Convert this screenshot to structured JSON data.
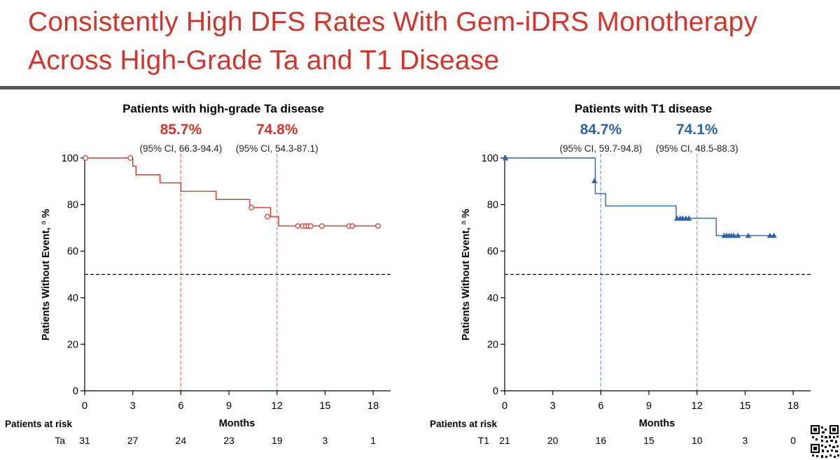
{
  "slide": {
    "title_line1": "Consistently High DFS Rates With Gem-iDRS Monotherapy",
    "title_line2": "Across High-Grade Ta and T1 Disease",
    "colors": {
      "title": "#d2342c",
      "rule": "#555555"
    }
  },
  "chart_data": [
    {
      "type": "line",
      "subtype": "kaplan-meier",
      "title": "Patients with high-grade Ta disease",
      "xlabel": "Months",
      "ylabel": "Patients Without Event,",
      "ylabel_superscript": "a",
      "ylabel_suffix": "%",
      "xlim": [
        0,
        19
      ],
      "ylim": [
        0,
        100
      ],
      "xticks": [
        0,
        3,
        6,
        9,
        12,
        15,
        18
      ],
      "yticks": [
        0,
        20,
        40,
        60,
        80,
        100
      ],
      "color": "#d2342c",
      "marker": "circle",
      "reference_line_y": 50,
      "landmarks": [
        {
          "x": 6,
          "rate": "85.7%",
          "ci": "(95% CI, 66.3-94.4)"
        },
        {
          "x": 12,
          "rate": "74.8%",
          "ci": "(95% CI, 54.3-87.1)"
        }
      ],
      "steps": [
        [
          0,
          100
        ],
        [
          2.9,
          100
        ],
        [
          3.0,
          96.5
        ],
        [
          3.2,
          92.8
        ],
        [
          4.7,
          89.3
        ],
        [
          6.0,
          85.7
        ],
        [
          8.2,
          82.2
        ],
        [
          10.3,
          78.7
        ],
        [
          11.6,
          74.8
        ],
        [
          12.1,
          70.8
        ],
        [
          18.3,
          70.8
        ]
      ],
      "censored": [
        [
          0.05,
          100
        ],
        [
          2.85,
          100
        ],
        [
          10.4,
          78.7
        ],
        [
          11.4,
          74.8
        ],
        [
          13.3,
          70.8
        ],
        [
          13.6,
          70.8
        ],
        [
          13.8,
          70.8
        ],
        [
          13.95,
          70.8
        ],
        [
          14.1,
          70.8
        ],
        [
          14.8,
          70.8
        ],
        [
          16.5,
          70.8
        ],
        [
          16.7,
          70.8
        ],
        [
          18.3,
          70.8
        ]
      ],
      "risk_table": {
        "heading": "Patients at risk",
        "group": "Ta",
        "values": [
          "31",
          "27",
          "24",
          "23",
          "19",
          "3",
          "1"
        ]
      }
    },
    {
      "type": "line",
      "subtype": "kaplan-meier",
      "title": "Patients with T1 disease",
      "xlabel": "Months",
      "ylabel": "Patients Without Event,",
      "ylabel_superscript": "a",
      "ylabel_suffix": "%",
      "xlim": [
        0,
        19
      ],
      "ylim": [
        0,
        100
      ],
      "xticks": [
        0,
        3,
        6,
        9,
        12,
        15,
        18
      ],
      "yticks": [
        0,
        20,
        40,
        60,
        80,
        100
      ],
      "color": "#2e63ad",
      "marker": "triangle",
      "reference_line_y": 50,
      "landmarks": [
        {
          "x": 6,
          "rate": "84.7%",
          "ci": "(95% CI, 59.7-94.8)"
        },
        {
          "x": 12,
          "rate": "74.1%",
          "ci": "(95% CI, 48.5-88.3)"
        }
      ],
      "steps": [
        [
          0,
          100
        ],
        [
          5.6,
          100
        ],
        [
          5.65,
          84.7
        ],
        [
          6.3,
          79.4
        ],
        [
          10.7,
          74.1
        ],
        [
          13.2,
          66.7
        ],
        [
          16.9,
          66.7
        ]
      ],
      "censored": [
        [
          0.05,
          100
        ],
        [
          5.6,
          90.2
        ],
        [
          10.75,
          74.1
        ],
        [
          10.95,
          74.1
        ],
        [
          11.1,
          74.1
        ],
        [
          11.3,
          74.1
        ],
        [
          11.5,
          74.1
        ],
        [
          13.7,
          66.7
        ],
        [
          13.85,
          66.7
        ],
        [
          14.0,
          66.7
        ],
        [
          14.15,
          66.7
        ],
        [
          14.3,
          66.7
        ],
        [
          14.55,
          66.7
        ],
        [
          15.2,
          66.7
        ],
        [
          16.55,
          66.7
        ],
        [
          16.8,
          66.7
        ]
      ],
      "risk_table": {
        "heading": "Patients at risk",
        "group": "T1",
        "values": [
          "21",
          "20",
          "16",
          "15",
          "10",
          "3",
          "0"
        ]
      }
    }
  ]
}
